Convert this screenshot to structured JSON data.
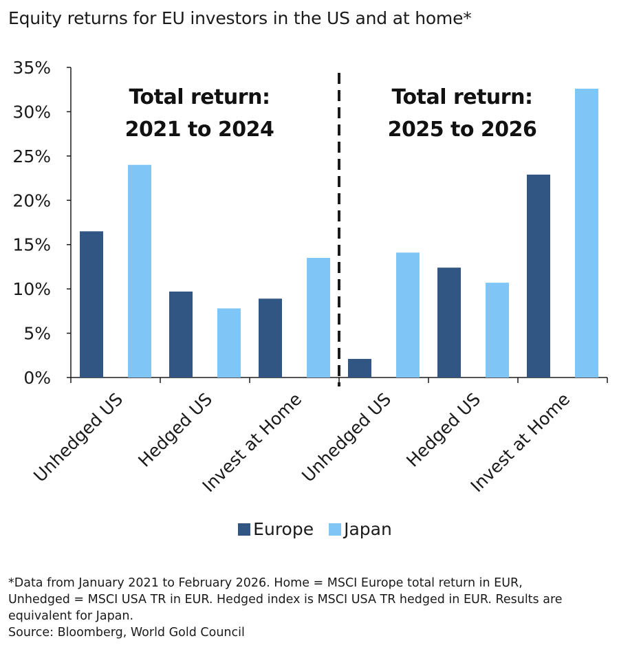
{
  "title": "Equity returns for EU investors in the US and at home*",
  "colors": {
    "europe": "#315683",
    "japan": "#7fc6f7",
    "axis": "#1a1a1a"
  },
  "chart_data": {
    "type": "bar",
    "categories": [
      "Unhedged US",
      "Hedged US",
      "Invest at Home",
      "Unhedged US",
      "Hedged US",
      "Invest at Home"
    ],
    "series": [
      {
        "name": "Europe",
        "values": [
          16.5,
          9.7,
          8.9,
          2.1,
          12.4,
          22.9
        ]
      },
      {
        "name": "Japan",
        "values": [
          24.0,
          7.8,
          13.5,
          14.1,
          10.7,
          32.6
        ]
      }
    ],
    "ylim": [
      0,
      35
    ],
    "yticks": [
      "0%",
      "5%",
      "10%",
      "15%",
      "20%",
      "25%",
      "30%",
      "35%"
    ],
    "annotations": [
      {
        "line1": "Total return:",
        "line2": "2021 to 2024"
      },
      {
        "line1": "Total return:",
        "line2": "2025 to 2026"
      }
    ],
    "divider": "dashed vertical line between the two periods",
    "legend_position": "bottom",
    "grid": false
  },
  "footnote": [
    "*Data from January 2021 to February 2026. Home = MSCI Europe total return in EUR,",
    "Unhedged = MSCI USA TR in EUR. Hedged index is MSCI USA TR hedged in EUR. Results are",
    "equivalent for Japan.",
    "Source: Bloomberg, World Gold Council"
  ]
}
